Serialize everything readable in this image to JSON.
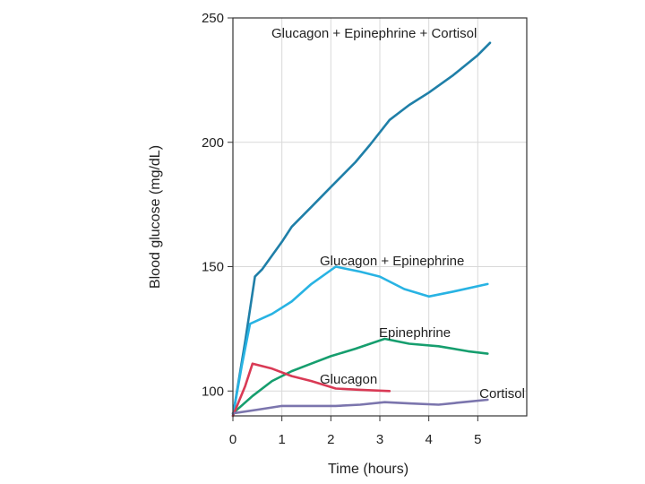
{
  "chart_data": {
    "type": "line",
    "title": "",
    "xlabel": "Time (hours)",
    "ylabel": "Blood glucose (mg/dL)",
    "xlim": [
      0,
      6
    ],
    "ylim": [
      90,
      250
    ],
    "x_ticks": [
      0,
      1,
      2,
      3,
      4,
      5
    ],
    "y_ticks": [
      100,
      150,
      200,
      250
    ],
    "grid": true,
    "legend": "inline labels near each line",
    "series": [
      {
        "name": "Glucagon + Epinephrine + Cortisol",
        "color": "#1f7fa8",
        "x": [
          0,
          0.25,
          0.45,
          0.6,
          1.0,
          1.2,
          1.6,
          2.0,
          2.5,
          2.8,
          3.2,
          3.6,
          4.0,
          4.5,
          5.0,
          5.25
        ],
        "y": [
          90,
          120,
          146,
          149,
          160,
          166,
          174,
          182,
          192,
          199,
          209,
          215,
          220,
          227,
          235,
          240
        ]
      },
      {
        "name": "Glucagon + Epinephrine",
        "color": "#28b3e3",
        "x": [
          0,
          0.18,
          0.35,
          0.8,
          1.2,
          1.6,
          2.1,
          2.6,
          3.0,
          3.5,
          4.0,
          4.5,
          5.2
        ],
        "y": [
          90,
          110,
          127,
          131,
          136,
          143,
          150,
          148,
          146,
          141,
          138,
          140,
          143
        ]
      },
      {
        "name": "Epinephrine",
        "color": "#169e6e",
        "x": [
          0,
          0.4,
          0.8,
          1.2,
          1.6,
          2.0,
          2.5,
          3.1,
          3.6,
          4.2,
          4.8,
          5.2
        ],
        "y": [
          91,
          98,
          104,
          108,
          111,
          114,
          117,
          121,
          119,
          118,
          116,
          115
        ]
      },
      {
        "name": "Glucagon",
        "color": "#d93a55",
        "x": [
          0,
          0.25,
          0.4,
          0.8,
          1.2,
          1.6,
          2.1,
          2.6,
          3.2
        ],
        "y": [
          90,
          102,
          111,
          109,
          106,
          104,
          101,
          100.5,
          100
        ]
      },
      {
        "name": "Cortisol",
        "color": "#7b75ad",
        "x": [
          0,
          0.5,
          1.0,
          1.6,
          2.1,
          2.6,
          3.1,
          3.6,
          4.2,
          4.7,
          5.2
        ],
        "y": [
          91,
          92.5,
          94,
          94,
          94,
          94.5,
          95.5,
          95,
          94.5,
          95.5,
          96.5
        ]
      }
    ]
  }
}
